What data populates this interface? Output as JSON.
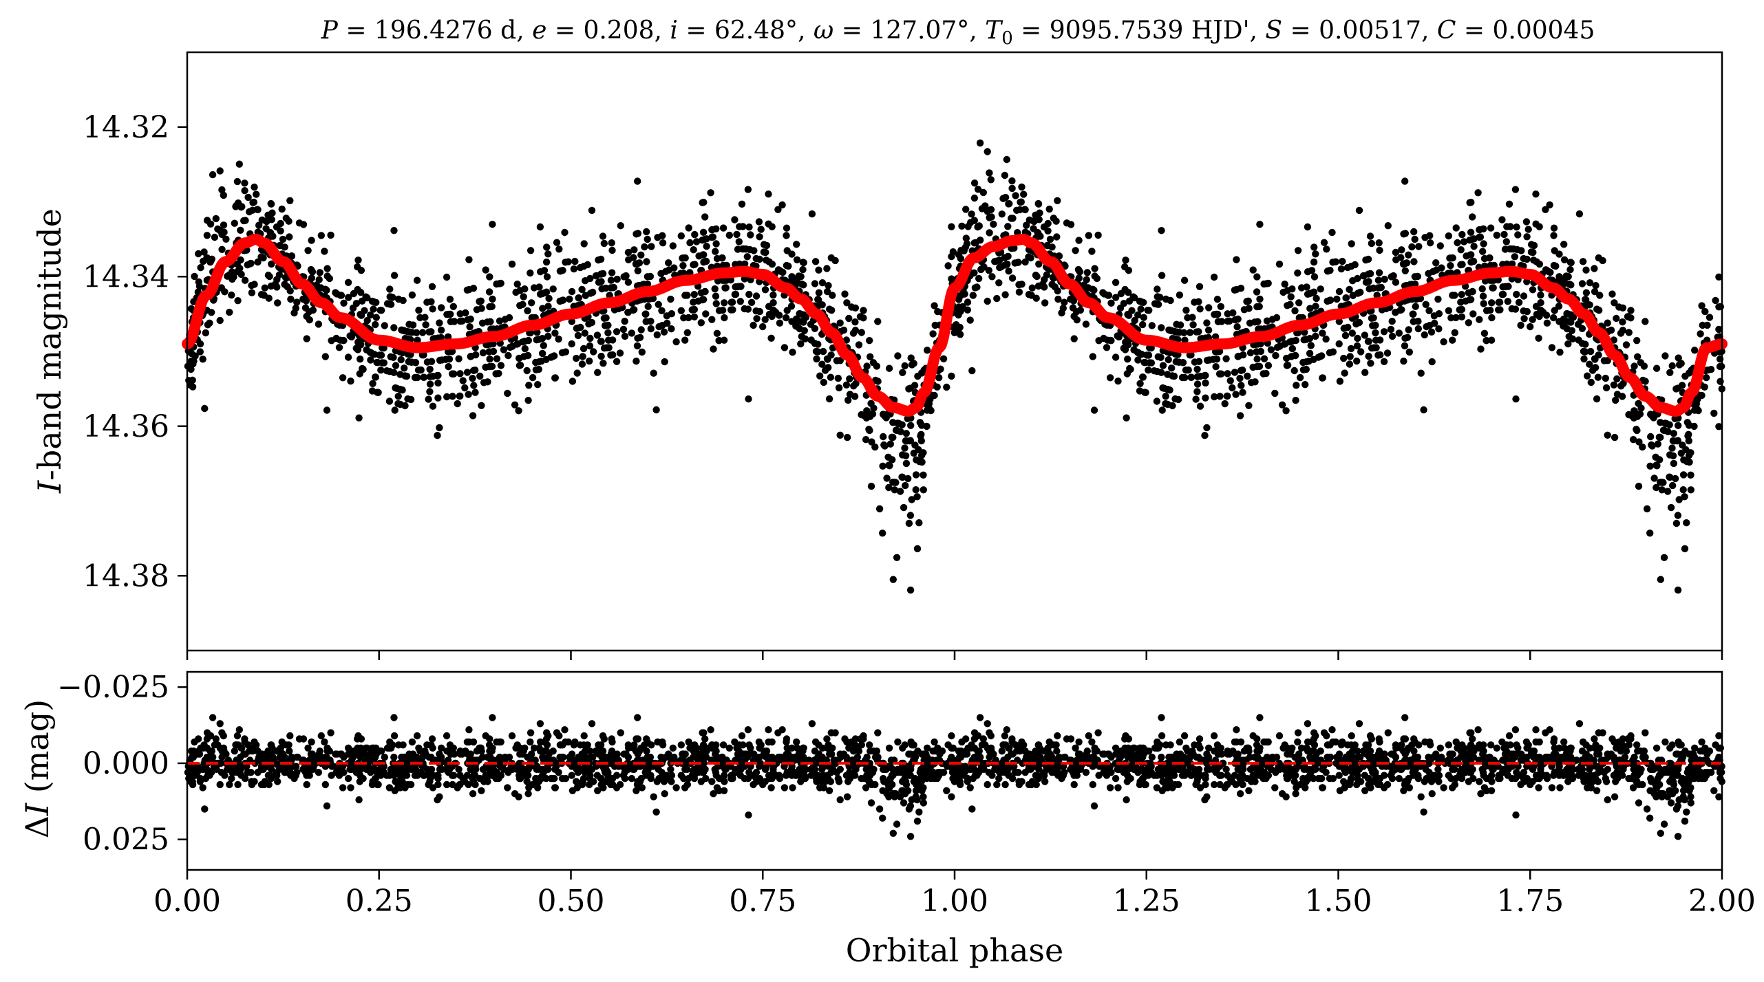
{
  "chart_data": [
    {
      "type": "scatter",
      "title": "P = 196.4276 d, e = 0.208, i = 62.48°, ω = 127.07°, T0 = 9095.7539 HJD', S = 0.00517, C = 0.00045",
      "title_parts": {
        "P_sym": "P",
        "P_val": " = 196.4276 d, ",
        "e_sym": "e",
        "e_val": " = 0.208, ",
        "i_sym": "i",
        "i_val": " = 62.48°, ",
        "w_sym": "ω",
        "w_val": " = 127.07°, ",
        "T_sym": "T",
        "T_sub": "0",
        "T_val": " = 9095.7539 HJD', ",
        "S_sym": "S",
        "S_val": " = 0.00517, ",
        "C_sym": "C",
        "C_val": " = 0.00045"
      },
      "ylabel_italic": "I",
      "ylabel_rest": "-band magnitude",
      "xlim": [
        0,
        2
      ],
      "ylim": [
        14.39,
        14.31
      ],
      "y_inverted": true,
      "yticks": [
        "14.32",
        "14.34",
        "14.36",
        "14.38"
      ],
      "ytick_values": [
        14.32,
        14.34,
        14.36,
        14.38
      ],
      "grid": false,
      "points_color": "#000000",
      "model_color": "#ff0000",
      "model_curve": {
        "phase": [
          0,
          0.025,
          0.05,
          0.075,
          0.09,
          0.1,
          0.125,
          0.15,
          0.175,
          0.2,
          0.25,
          0.3,
          0.35,
          0.4,
          0.45,
          0.5,
          0.55,
          0.6,
          0.65,
          0.7,
          0.725,
          0.75,
          0.78,
          0.8,
          0.82,
          0.84,
          0.86,
          0.88,
          0.9,
          0.92,
          0.94,
          0.95,
          0.96,
          0.98,
          1.0,
          1.025,
          1.05,
          1.075,
          1.09,
          1.1,
          1.125,
          1.15,
          1.175,
          1.2,
          1.25,
          1.3,
          1.35,
          1.4,
          1.45,
          1.5,
          1.55,
          1.6,
          1.65,
          1.7,
          1.725,
          1.75,
          1.78,
          1.8,
          1.82,
          1.84,
          1.86,
          1.88,
          1.9,
          1.92,
          1.94,
          1.95,
          1.96,
          1.98,
          2.0
        ],
        "magnitude": [
          14.349,
          14.3425,
          14.338,
          14.3355,
          14.335,
          14.3355,
          14.338,
          14.341,
          14.3435,
          14.3455,
          14.3485,
          14.3495,
          14.349,
          14.348,
          14.3465,
          14.345,
          14.3435,
          14.342,
          14.3405,
          14.3395,
          14.3393,
          14.3397,
          14.3415,
          14.343,
          14.345,
          14.3475,
          14.3505,
          14.3535,
          14.356,
          14.3575,
          14.358,
          14.3575,
          14.3555,
          14.3495,
          14.3415,
          14.3375,
          14.336,
          14.3352,
          14.335,
          14.3355,
          14.338,
          14.341,
          14.3435,
          14.3455,
          14.3485,
          14.3495,
          14.349,
          14.348,
          14.3465,
          14.345,
          14.3435,
          14.342,
          14.3405,
          14.3395,
          14.3393,
          14.3397,
          14.3415,
          14.343,
          14.345,
          14.3475,
          14.3505,
          14.3535,
          14.356,
          14.3575,
          14.358,
          14.3575,
          14.3555,
          14.3495,
          14.349
        ]
      },
      "scatter_description_values": {
        "n_points_per_cycle": 1500,
        "magnitude_scatter_sigma": 0.0045
      }
    },
    {
      "type": "scatter",
      "ylabel_prefix": "Δ",
      "ylabel_italic": "I",
      "ylabel_rest": " (mag)",
      "xlabel": "Orbital phase",
      "xlim": [
        0,
        2
      ],
      "ylim": [
        0.035,
        -0.03
      ],
      "y_inverted": true,
      "yticks": [
        "−0.025",
        "0.000",
        "0.025"
      ],
      "ytick_values": [
        -0.025,
        0,
        0.025
      ],
      "xticks": [
        "0.00",
        "0.25",
        "0.50",
        "0.75",
        "1.00",
        "1.25",
        "1.50",
        "1.75",
        "2.00"
      ],
      "xtick_values": [
        0,
        0.25,
        0.5,
        0.75,
        1.0,
        1.25,
        1.5,
        1.75,
        2.0
      ],
      "zero_line": 0,
      "zero_line_color": "#ff0000",
      "zero_line_style": "dashed",
      "residual_sigma": 0.0045
    }
  ]
}
